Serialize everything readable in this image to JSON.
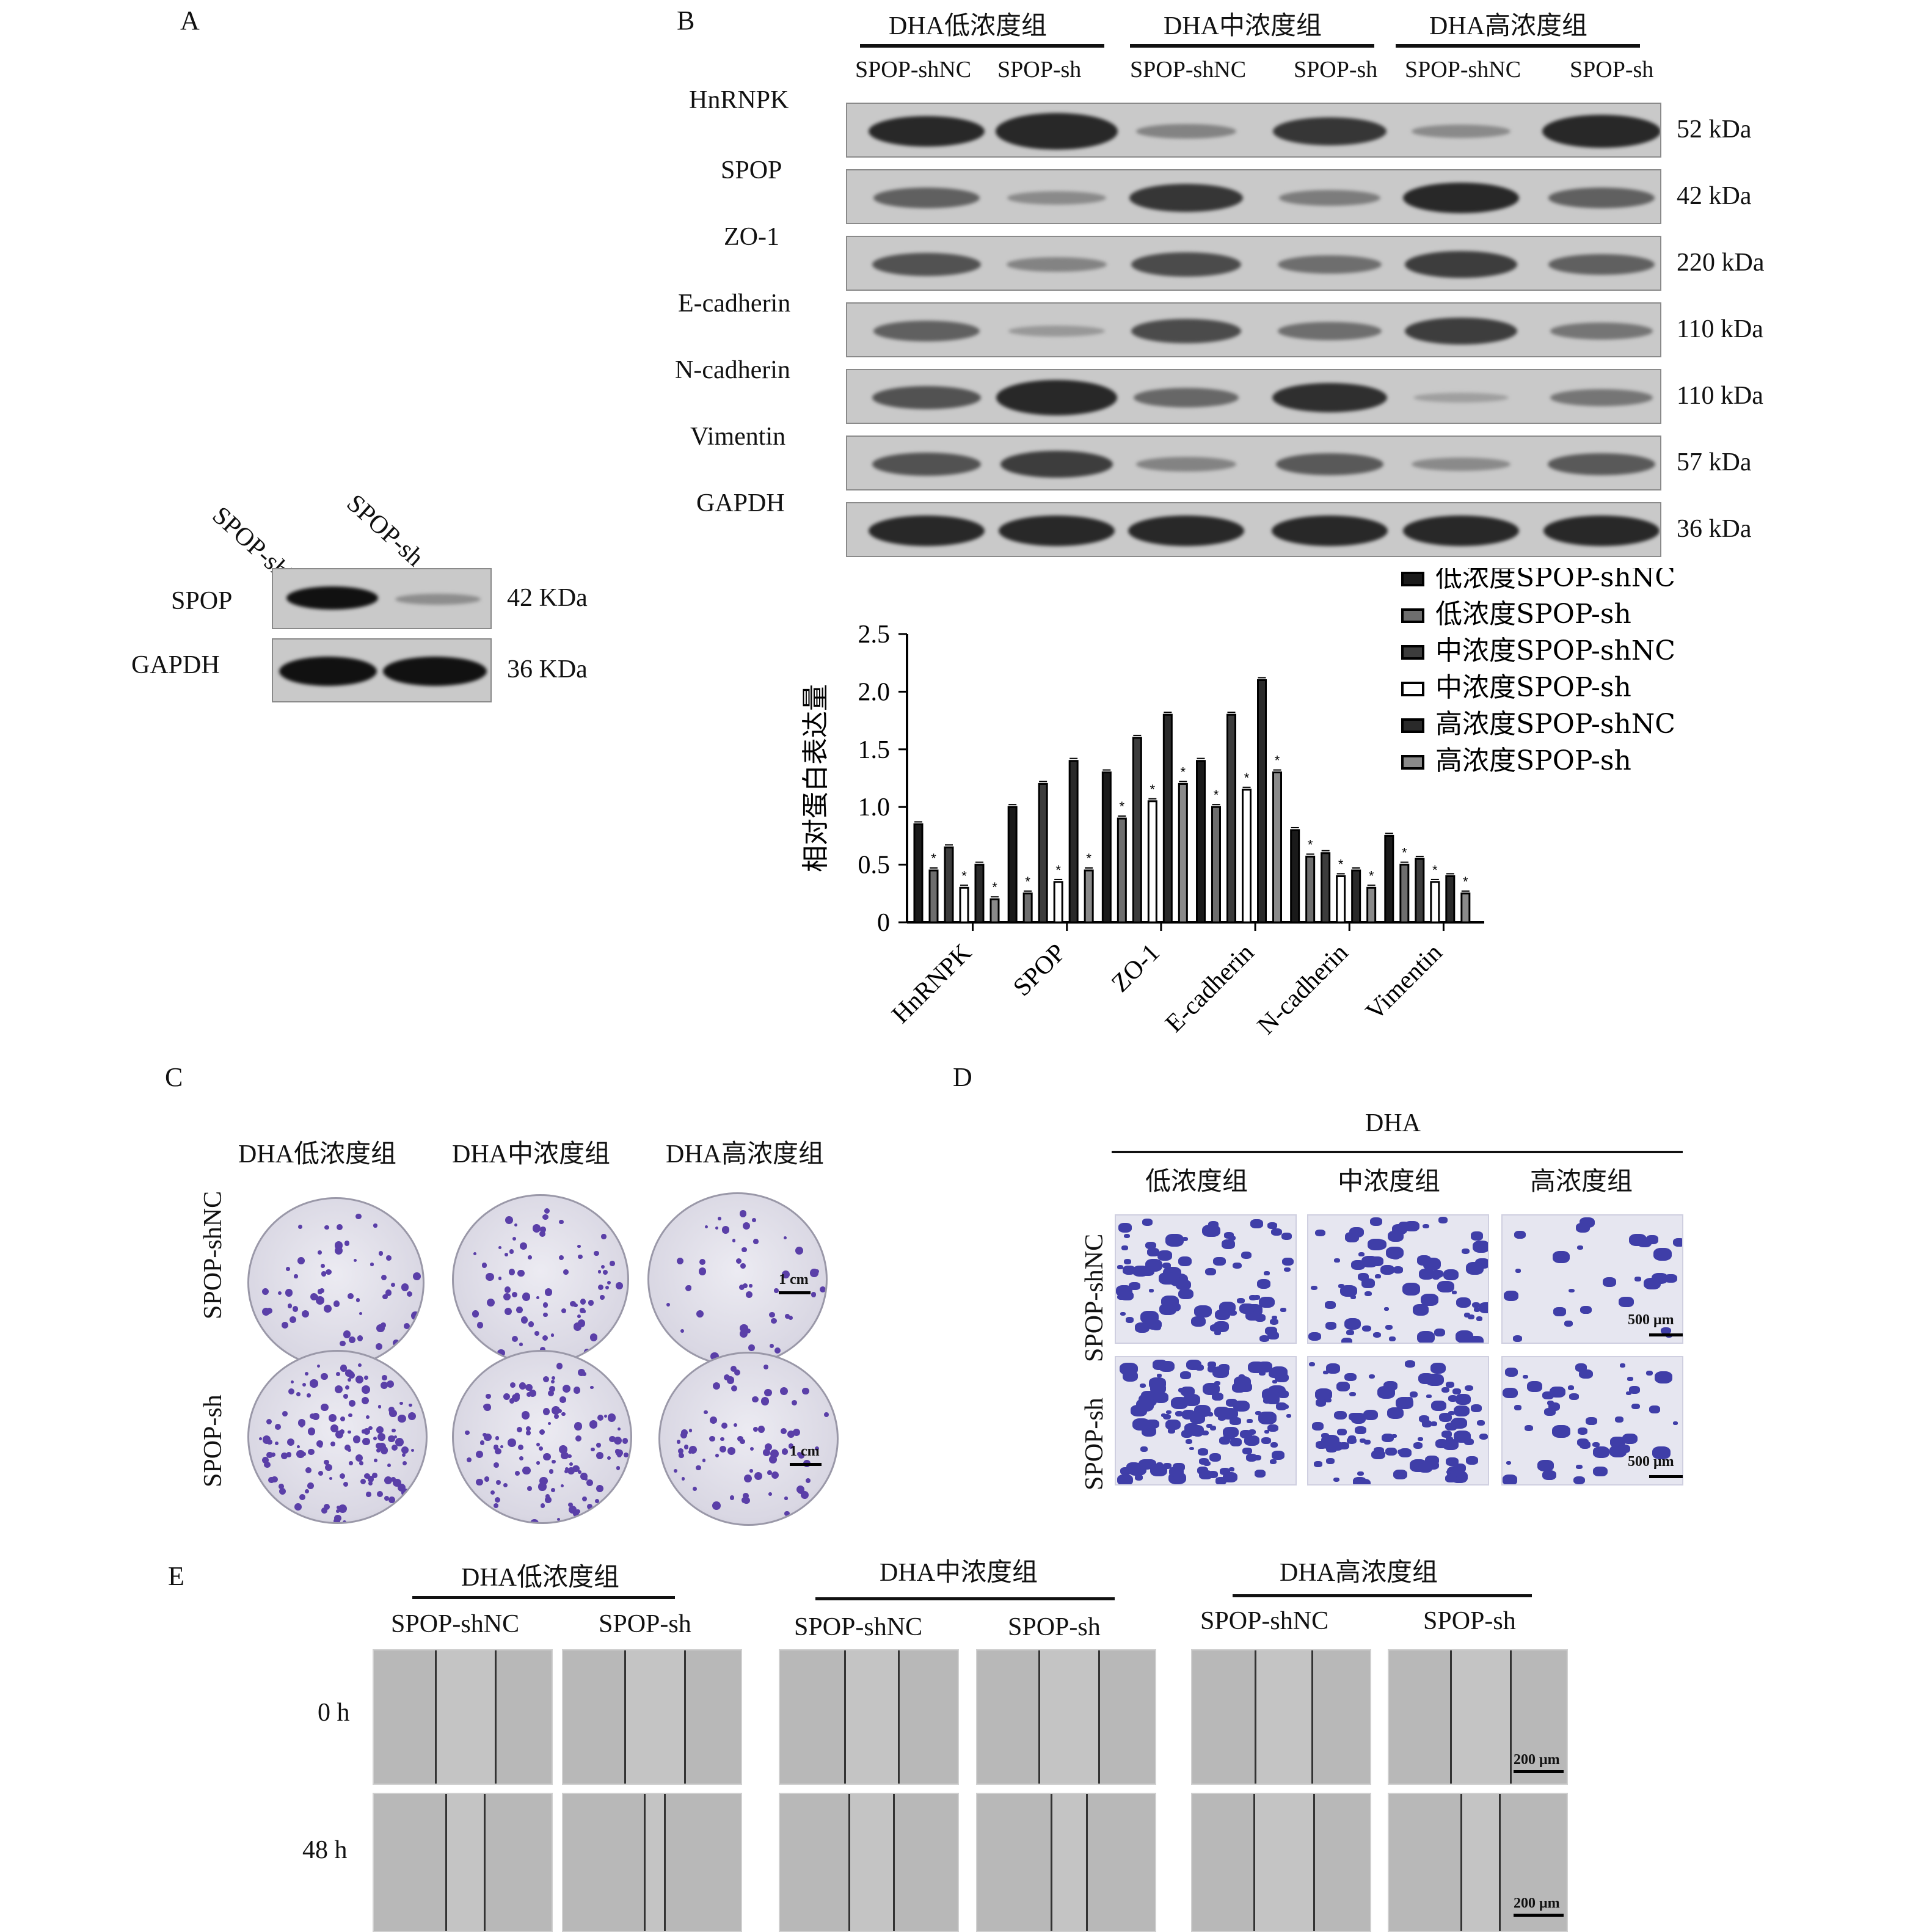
{
  "panelA": {
    "letter": "A",
    "lanes": [
      "SPOP-shNC",
      "SPOP-sh"
    ],
    "rows": [
      {
        "name": "SPOP",
        "size": "42 KDa"
      },
      {
        "name": "GAPDH",
        "size": "36 KDa"
      }
    ]
  },
  "panelB": {
    "letter": "B",
    "groups": [
      "DHA低浓度组",
      "DHA中浓度组",
      "DHA高浓度组"
    ],
    "lanes": [
      "SPOP-shNC",
      "SPOP-sh",
      "SPOP-shNC",
      "SPOP-sh",
      "SPOP-shNC",
      "SPOP-sh"
    ],
    "rows": [
      {
        "name": "HnRNPK",
        "size": "52 kDa"
      },
      {
        "name": "SPOP",
        "size": "42 kDa"
      },
      {
        "name": "ZO-1",
        "size": "220 kDa"
      },
      {
        "name": "E-cadherin",
        "size": "110 kDa"
      },
      {
        "name": "N-cadherin",
        "size": "110 kDa"
      },
      {
        "name": "Vimentin",
        "size": "57 kDa"
      },
      {
        "name": "GAPDH",
        "size": "36 kDa"
      }
    ]
  },
  "chart_data": {
    "type": "bar",
    "title": "",
    "xlabel": "",
    "ylabel": "相对蛋白表达量",
    "ylim": [
      0,
      2.5
    ],
    "yticks": [
      "0",
      "0.5",
      "1.0",
      "1.5",
      "2.0",
      "2.5"
    ],
    "ytick_values": [
      0,
      0.5,
      1.0,
      1.5,
      2.0,
      2.5
    ],
    "categories": [
      "HnRNPK",
      "SPOP",
      "ZO-1",
      "E-cadherin",
      "N-cadherin",
      "Vimentin"
    ],
    "legend_position": "top-right",
    "series": [
      {
        "name": "低浓度SPOP-shNC",
        "values": [
          0.85,
          1.0,
          1.3,
          1.4,
          0.8,
          0.75
        ],
        "color": "#1a1a1a"
      },
      {
        "name": "低浓度SPOP-sh",
        "values": [
          0.45,
          0.25,
          0.9,
          1.0,
          0.57,
          0.5
        ],
        "color": "#6e6e6e"
      },
      {
        "name": "中浓度SPOP-shNC",
        "values": [
          0.65,
          1.2,
          1.6,
          1.8,
          0.6,
          0.55
        ],
        "color": "#3c3c3c"
      },
      {
        "name": "中浓度SPOP-sh",
        "values": [
          0.3,
          0.35,
          1.05,
          1.15,
          0.4,
          0.35
        ],
        "color": "#ffffff"
      },
      {
        "name": "高浓度SPOP-shNC",
        "values": [
          0.5,
          1.4,
          1.8,
          2.1,
          0.45,
          0.4
        ],
        "color": "#2a2a2a"
      },
      {
        "name": "高浓度SPOP-sh",
        "values": [
          0.2,
          0.45,
          1.2,
          1.3,
          0.3,
          0.25
        ],
        "color": "#8a8a8a"
      }
    ],
    "significance_mark": "*"
  },
  "panelC": {
    "letter": "C",
    "cols": [
      "DHA低浓度组",
      "DHA中浓度组",
      "DHA高浓度组"
    ],
    "rows": [
      "SPOP-shNC",
      "SPOP-sh"
    ],
    "scale": "1 cm"
  },
  "panelD": {
    "letter": "D",
    "header": "DHA",
    "cols": [
      "低浓度组",
      "中浓度组",
      "高浓度组"
    ],
    "rows": [
      "SPOP-shNC",
      "SPOP-sh"
    ],
    "scale": "500 μm"
  },
  "panelE": {
    "letter": "E",
    "groups": [
      "DHA低浓度组",
      "DHA中浓度组",
      "DHA高浓度组"
    ],
    "lanes": [
      "SPOP-shNC",
      "SPOP-sh"
    ],
    "times": [
      "0 h",
      "48 h"
    ],
    "scale": "200 μm"
  }
}
